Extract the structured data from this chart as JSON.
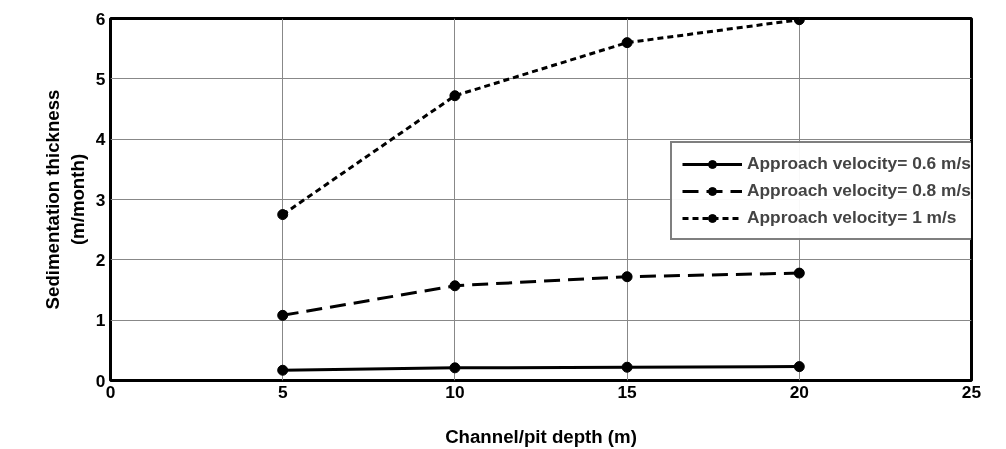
{
  "chart_data": {
    "type": "line",
    "xlabel": "Channel/pit depth (m)",
    "ylabel": "Sedimentation thickness\n(m/month)",
    "x": [
      5,
      10,
      15,
      20
    ],
    "xlim": [
      0,
      25
    ],
    "xticks": [
      0,
      5,
      10,
      15,
      20,
      25
    ],
    "ylim": [
      0,
      6
    ],
    "yticks": [
      0,
      1,
      2,
      3,
      4,
      5,
      6
    ],
    "grid": true,
    "legend": "right",
    "marker": "circle",
    "series": [
      {
        "name": "Approach velocity= 0.6 m/s",
        "color": "#000000",
        "line_style": "solid",
        "values": [
          0.17,
          0.21,
          0.22,
          0.23
        ]
      },
      {
        "name": "Approach velocity= 0.8 m/s",
        "color": "#000000",
        "line_style": "dashed",
        "values": [
          1.08,
          1.57,
          1.72,
          1.78
        ]
      },
      {
        "name": "Approach velocity= 1 m/s",
        "color": "#000000",
        "line_style": "dotted",
        "values": [
          2.75,
          4.72,
          5.6,
          5.98
        ]
      }
    ]
  }
}
